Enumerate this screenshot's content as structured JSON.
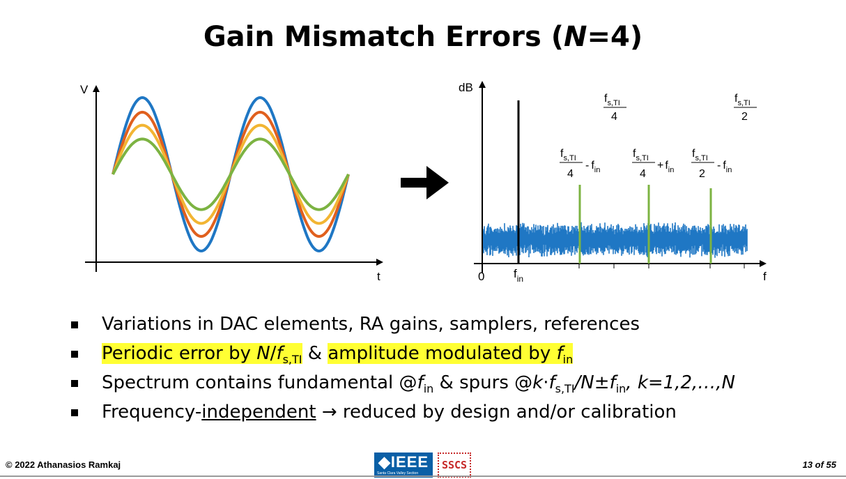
{
  "title": {
    "prefix": "Gain Mismatch Errors (",
    "italic": "N",
    "suffix": "=4)"
  },
  "time_plot": {
    "y_label": "V",
    "x_label": "t",
    "colors": [
      "#1f77c4",
      "#e0601e",
      "#f2b533",
      "#7cb342"
    ],
    "amplitudes": [
      1.0,
      0.81,
      0.64,
      0.46
    ]
  },
  "spectrum_plot": {
    "y_label": "dB",
    "x_label": "f",
    "origin_label": "0",
    "fin_label": {
      "base": "f",
      "sub": "in"
    },
    "fs4_label": {
      "num": "f",
      "num_sub": "s,TI",
      "den": "4"
    },
    "fs2_label": {
      "num": "f",
      "num_sub": "s,TI",
      "den": "2"
    },
    "spur_labels": [
      {
        "num": "f",
        "num_sub": "s,TI",
        "den": "4",
        "op": "-",
        "f": "f",
        "f_sub": "in"
      },
      {
        "num": "f",
        "num_sub": "s,TI",
        "den": "4",
        "op": "+",
        "f": "f",
        "f_sub": "in"
      },
      {
        "num": "f",
        "num_sub": "s,TI",
        "den": "2",
        "op": "-",
        "f": "f",
        "f_sub": "in"
      }
    ],
    "noise_color": "#1f77c4",
    "spur_color": "#7cb342",
    "fundamental_color": "#000000"
  },
  "bullets": {
    "b1": "Variations in DAC elements, RA gains, samplers, references",
    "b2_hl1_pre": "Periodic error by ",
    "b2_hl1_n": "N",
    "b2_hl1_slash": "/",
    "b2_hl1_f": "f",
    "b2_hl1_sub": "s,TI",
    "b2_amp": " & ",
    "b2_hl2_pre": "amplitude modulated by ",
    "b2_hl2_f": "f",
    "b2_hl2_sub": "in",
    "b3_pre": "Spectrum contains fundamental @",
    "b3_f1": "f",
    "b3_f1_sub": "in",
    "b3_mid": " & spurs @",
    "b3_k": "k",
    "b3_dot": "·",
    "b3_f2": "f",
    "b3_f2_sub": "s,TI",
    "b3_n": "/N±",
    "b3_f3": "f",
    "b3_f3_sub": "in",
    "b3_tail": ", k=1,2,…,N",
    "b4_pre": "Frequency-",
    "b4_u": "independent",
    "b4_post": " → reduced by design and/or calibration"
  },
  "footer": {
    "copyright": "© 2022 Athanasios Ramkaj",
    "page": "13 of 55",
    "ieee": "IEEE",
    "ieee_sub": "Santa Clara Valley Section",
    "sscs": "SSCS"
  }
}
